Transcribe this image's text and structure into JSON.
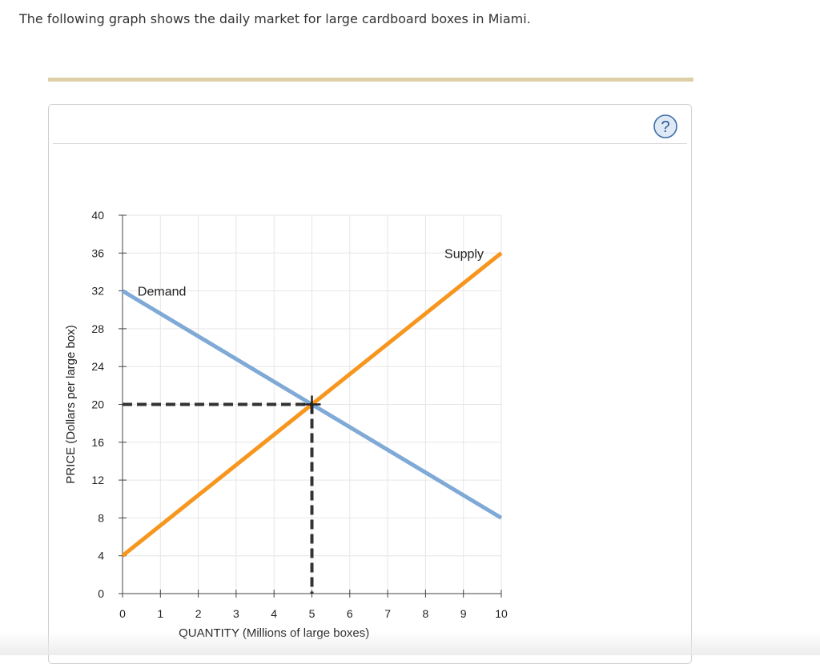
{
  "question_text": "The following graph shows the daily market for large cardboard boxes in Miami.",
  "help_icon": "help-question-icon",
  "help_glyph": "?",
  "colors": {
    "demand": "#7fa9d6",
    "supply": "#f7961e",
    "dashed": "#333333",
    "grid": "#e6e6e6",
    "accent_rule": "#ddd0a8"
  },
  "chart_data": {
    "type": "line",
    "xlabel": "QUANTITY (Millions of large boxes)",
    "ylabel": "PRICE (Dollars per large box)",
    "xlim": [
      0,
      10
    ],
    "ylim": [
      0,
      40
    ],
    "x_ticks": [
      0,
      1,
      2,
      3,
      4,
      5,
      6,
      7,
      8,
      9,
      10
    ],
    "y_ticks": [
      0,
      4,
      8,
      12,
      16,
      20,
      24,
      28,
      32,
      36,
      40
    ],
    "grid": true,
    "series": [
      {
        "name": "Demand",
        "points": [
          [
            0,
            32
          ],
          [
            10,
            8
          ]
        ]
      },
      {
        "name": "Supply",
        "points": [
          [
            0,
            4
          ],
          [
            10,
            36
          ]
        ]
      }
    ],
    "equilibrium": {
      "x": 5,
      "y": 20
    }
  }
}
